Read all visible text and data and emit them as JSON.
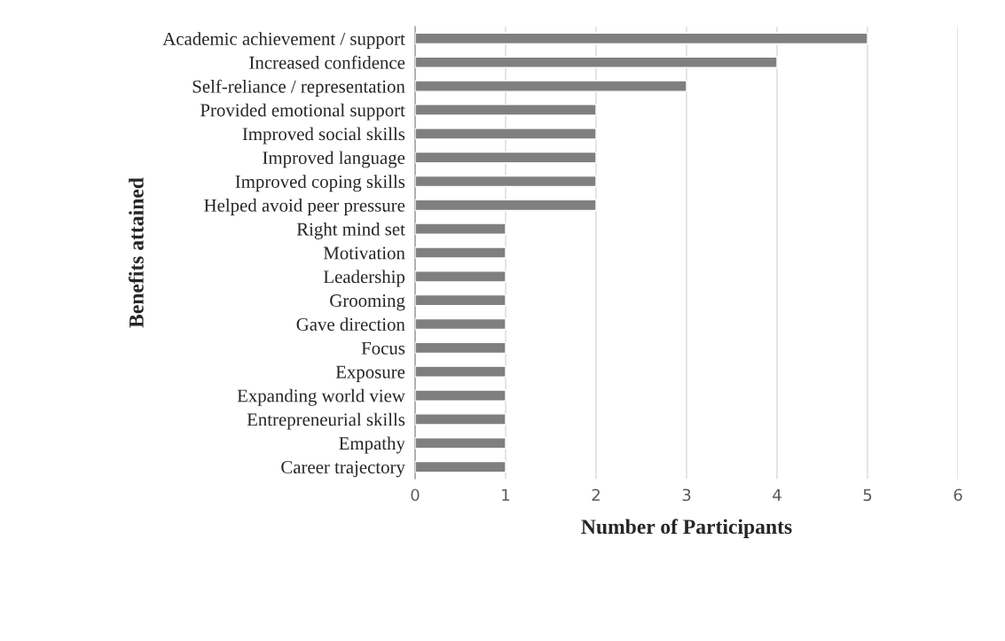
{
  "chart_data": {
    "type": "bar",
    "orientation": "horizontal",
    "xlabel": "Number of Participants",
    "ylabel": "Benefits attained",
    "categories": [
      "Academic achievement / support",
      "Increased confidence",
      "Self-reliance / representation",
      "Provided emotional support",
      "Improved social skills",
      "Improved language",
      "Improved coping skills",
      "Helped avoid peer pressure",
      "Right mind set",
      "Motivation",
      "Leadership",
      "Grooming",
      "Gave direction",
      "Focus",
      "Exposure",
      "Expanding world view",
      "Entrepreneurial skills",
      "Empathy",
      "Career trajectory"
    ],
    "values": [
      5,
      4,
      3,
      2,
      2,
      2,
      2,
      2,
      1,
      1,
      1,
      1,
      1,
      1,
      1,
      1,
      1,
      1,
      1
    ],
    "color": "#7f7f7f",
    "xlim": [
      0,
      6
    ],
    "xticks": [
      0,
      1,
      2,
      3,
      4,
      5,
      6
    ],
    "grid": "x",
    "legend": false
  }
}
